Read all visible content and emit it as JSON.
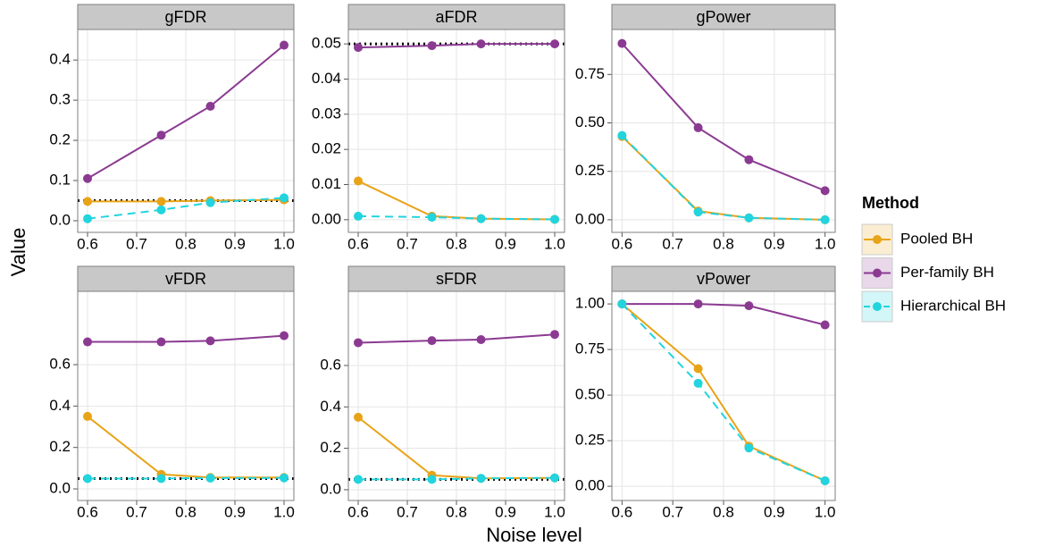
{
  "figure": {
    "x_label": "Noise level",
    "y_label": "Value",
    "legend_title": "Method"
  },
  "chart_data": [
    {
      "type": "line",
      "title": "gFDR",
      "x": [
        0.6,
        0.75,
        0.85,
        1.0
      ],
      "xlim": [
        0.58,
        1.02
      ],
      "xticks": [
        0.6,
        0.7,
        0.8,
        0.9,
        {
          "value": 1.0,
          "label": "1.0"
        }
      ],
      "ylim": [
        -0.029,
        0.476
      ],
      "yticks": [
        {
          "value": 0,
          "label": "0.0"
        },
        0.1,
        0.2,
        0.3,
        0.4
      ],
      "grid": true,
      "reference_line": 0.05,
      "series": [
        {
          "name": "Pooled BH",
          "color": "#e8a317",
          "dash": false,
          "values": [
            0.048,
            0.048,
            0.05,
            0.052
          ]
        },
        {
          "name": "Per-family BH",
          "color": "#8b3a92",
          "dash": false,
          "values": [
            0.105,
            0.213,
            0.285,
            0.437
          ]
        },
        {
          "name": "Hierarchical BH",
          "color": "#22d4de",
          "dash": true,
          "values": [
            0.005,
            0.027,
            0.045,
            0.057
          ]
        }
      ]
    },
    {
      "type": "line",
      "title": "aFDR",
      "x": [
        0.6,
        0.75,
        0.85,
        1.0
      ],
      "xlim": [
        0.58,
        1.02
      ],
      "xticks": [
        0.6,
        0.7,
        0.8,
        0.9,
        {
          "value": 1.0,
          "label": "1.0"
        }
      ],
      "ylim": [
        -0.0036,
        0.0541
      ],
      "yticks": [
        {
          "value": 0,
          "label": "0.00"
        },
        {
          "value": 0.01,
          "label": "0.01"
        },
        {
          "value": 0.02,
          "label": "0.02"
        },
        {
          "value": 0.03,
          "label": "0.03"
        },
        {
          "value": 0.04,
          "label": "0.04"
        },
        {
          "value": 0.05,
          "label": "0.05"
        }
      ],
      "grid": true,
      "reference_line": 0.05,
      "series": [
        {
          "name": "Pooled BH",
          "color": "#e8a317",
          "dash": false,
          "values": [
            0.011,
            0.001,
            0.0003,
            0.0001
          ]
        },
        {
          "name": "Per-family BH",
          "color": "#8b3a92",
          "dash": false,
          "values": [
            0.049,
            0.0495,
            0.05,
            0.05
          ]
        },
        {
          "name": "Hierarchical BH",
          "color": "#22d4de",
          "dash": true,
          "values": [
            0.001,
            0.0007,
            0.0003,
            0.0001
          ]
        }
      ]
    },
    {
      "type": "line",
      "title": "gPower",
      "x": [
        0.6,
        0.75,
        0.85,
        1.0
      ],
      "xlim": [
        0.58,
        1.02
      ],
      "xticks": [
        0.6,
        0.7,
        0.8,
        0.9,
        {
          "value": 1.0,
          "label": "1.0"
        }
      ],
      "ylim": [
        -0.065,
        0.982
      ],
      "yticks": [
        {
          "value": 0,
          "label": "0.00"
        },
        0.25,
        {
          "value": 0.5,
          "label": "0.50"
        },
        0.75
      ],
      "grid": true,
      "series": [
        {
          "name": "Pooled BH",
          "color": "#e8a317",
          "dash": false,
          "values": [
            0.43,
            0.045,
            0.01,
            0.0
          ]
        },
        {
          "name": "Per-family BH",
          "color": "#8b3a92",
          "dash": false,
          "values": [
            0.91,
            0.475,
            0.31,
            0.15
          ]
        },
        {
          "name": "Hierarchical BH",
          "color": "#22d4de",
          "dash": true,
          "values": [
            0.435,
            0.04,
            0.01,
            0.0
          ]
        }
      ]
    },
    {
      "type": "line",
      "title": "vFDR",
      "x": [
        0.6,
        0.75,
        0.85,
        1.0
      ],
      "xlim": [
        0.58,
        1.02
      ],
      "xticks": [
        0.6,
        0.7,
        0.8,
        0.9,
        {
          "value": 1.0,
          "label": "1.0"
        }
      ],
      "ylim": [
        -0.056,
        0.954
      ],
      "yticks": [
        {
          "value": 0,
          "label": "0.0"
        },
        0.2,
        0.4,
        0.6
      ],
      "grid": true,
      "reference_line": 0.05,
      "series": [
        {
          "name": "Pooled BH",
          "color": "#e8a317",
          "dash": false,
          "values": [
            0.35,
            0.07,
            0.055,
            0.055
          ]
        },
        {
          "name": "Per-family BH",
          "color": "#8b3a92",
          "dash": false,
          "values": [
            0.71,
            0.71,
            0.715,
            0.74
          ]
        },
        {
          "name": "Hierarchical BH",
          "color": "#22d4de",
          "dash": true,
          "values": [
            0.05,
            0.05,
            0.052,
            0.053
          ]
        }
      ]
    },
    {
      "type": "line",
      "title": "sFDR",
      "x": [
        0.6,
        0.75,
        0.85,
        1.0
      ],
      "xlim": [
        0.58,
        1.02
      ],
      "xticks": [
        0.6,
        0.7,
        0.8,
        0.9,
        {
          "value": 1.0,
          "label": "1.0"
        }
      ],
      "ylim": [
        -0.052,
        0.958
      ],
      "yticks": [
        {
          "value": 0,
          "label": "0.0"
        },
        0.2,
        0.4,
        0.6
      ],
      "grid": true,
      "reference_line": 0.05,
      "series": [
        {
          "name": "Pooled BH",
          "color": "#e8a317",
          "dash": false,
          "values": [
            0.35,
            0.07,
            0.055,
            0.057
          ]
        },
        {
          "name": "Per-family BH",
          "color": "#8b3a92",
          "dash": false,
          "values": [
            0.71,
            0.72,
            0.725,
            0.75
          ]
        },
        {
          "name": "Hierarchical BH",
          "color": "#22d4de",
          "dash": true,
          "values": [
            0.05,
            0.05,
            0.055,
            0.057
          ]
        }
      ]
    },
    {
      "type": "line",
      "title": "vPower",
      "x": [
        0.6,
        0.75,
        0.85,
        1.0
      ],
      "xlim": [
        0.58,
        1.02
      ],
      "xticks": [
        0.6,
        0.7,
        0.8,
        0.9,
        {
          "value": 1.0,
          "label": "1.0"
        }
      ],
      "ylim": [
        -0.078,
        1.069
      ],
      "yticks": [
        {
          "value": 0,
          "label": "0.00"
        },
        0.25,
        {
          "value": 0.5,
          "label": "0.50"
        },
        0.75,
        {
          "value": 1,
          "label": "1.00"
        }
      ],
      "grid": true,
      "series": [
        {
          "name": "Pooled BH",
          "color": "#e8a317",
          "dash": false,
          "values": [
            1.0,
            0.645,
            0.22,
            0.03
          ]
        },
        {
          "name": "Per-family BH",
          "color": "#8b3a92",
          "dash": false,
          "values": [
            1.0,
            1.0,
            0.99,
            0.885
          ]
        },
        {
          "name": "Hierarchical BH",
          "color": "#22d4de",
          "dash": true,
          "values": [
            1.0,
            0.565,
            0.21,
            0.03
          ]
        }
      ]
    }
  ]
}
